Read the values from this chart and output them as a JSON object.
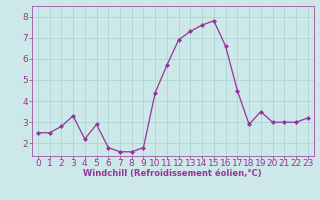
{
  "x": [
    0,
    1,
    2,
    3,
    4,
    5,
    6,
    7,
    8,
    9,
    10,
    11,
    12,
    13,
    14,
    15,
    16,
    17,
    18,
    19,
    20,
    21,
    22,
    23
  ],
  "y": [
    2.5,
    2.5,
    2.8,
    3.3,
    2.2,
    2.9,
    1.8,
    1.6,
    1.6,
    1.8,
    4.4,
    5.7,
    6.9,
    7.3,
    7.6,
    7.8,
    6.6,
    4.5,
    2.9,
    3.5,
    3.0,
    3.0,
    3.0,
    3.2
  ],
  "line_color": "#993399",
  "marker": "D",
  "marker_size": 2,
  "bg_color": "#cce8e8",
  "grid_color": "#b0d8d8",
  "xlabel": "Windchill (Refroidissement éolien,°C)",
  "xlabel_color": "#993399",
  "tick_color": "#993399",
  "ylim": [
    1.4,
    8.5
  ],
  "xlim": [
    -0.5,
    23.5
  ],
  "yticks": [
    2,
    3,
    4,
    5,
    6,
    7,
    8
  ],
  "xticks": [
    0,
    1,
    2,
    3,
    4,
    5,
    6,
    7,
    8,
    9,
    10,
    11,
    12,
    13,
    14,
    15,
    16,
    17,
    18,
    19,
    20,
    21,
    22,
    23
  ],
  "label_fontsize": 6.0,
  "tick_fontsize": 6.5
}
